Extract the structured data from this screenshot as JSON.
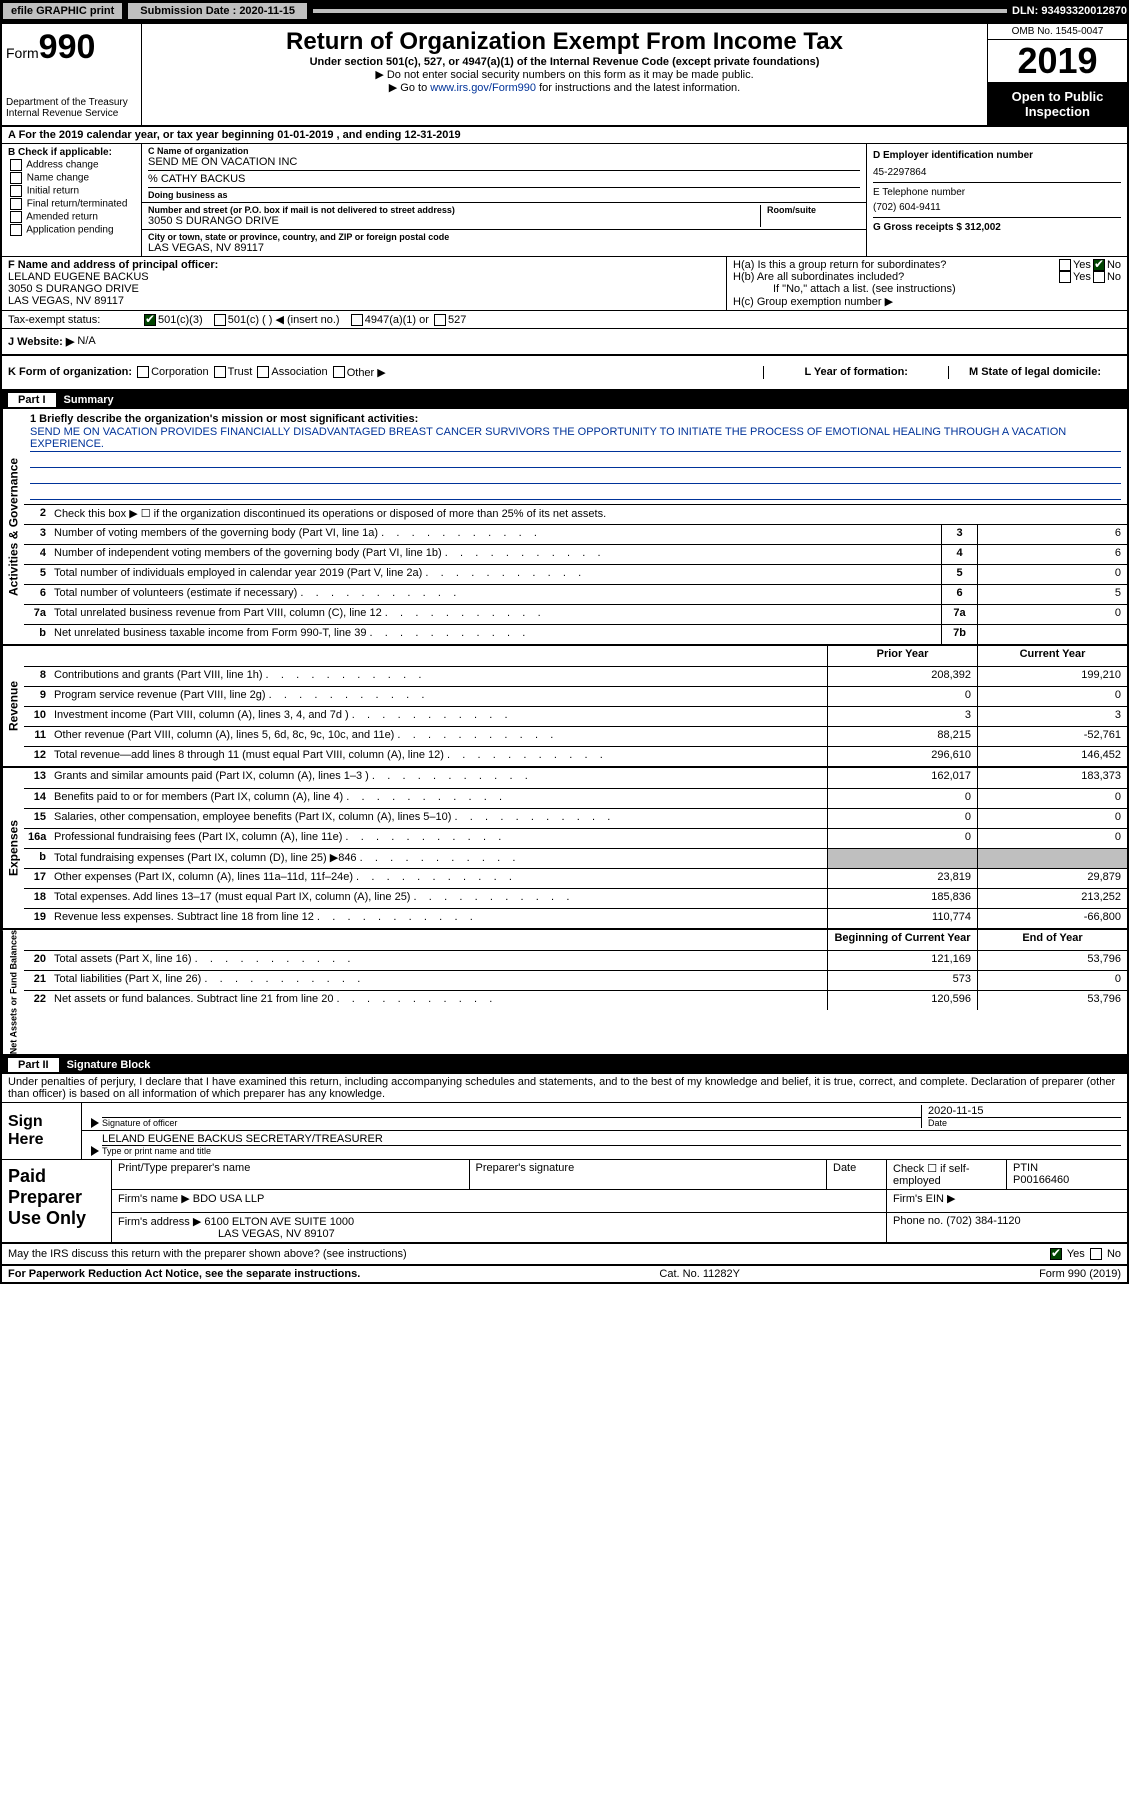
{
  "topbar": {
    "efile": "efile GRAPHIC print",
    "submission_label": "Submission Date : 2020-11-15",
    "dln": "DLN: 93493320012870"
  },
  "header": {
    "form_word": "Form",
    "form_num": "990",
    "dept": "Department of the Treasury",
    "irs": "Internal Revenue Service",
    "title": "Return of Organization Exempt From Income Tax",
    "sub": "Under section 501(c), 527, or 4947(a)(1) of the Internal Revenue Code (except private foundations)",
    "note1": "▶ Do not enter social security numbers on this form as it may be made public.",
    "note2_a": "▶ Go to ",
    "note2_link": "www.irs.gov/Form990",
    "note2_b": " for instructions and the latest information.",
    "omb": "OMB No. 1545-0047",
    "year": "2019",
    "open": "Open to Public Inspection"
  },
  "secA": "A For the 2019 calendar year, or tax year beginning 01-01-2019     , and ending 12-31-2019",
  "colB": {
    "label": "B Check if applicable:",
    "items": [
      "Address change",
      "Name change",
      "Initial return",
      "Final return/terminated",
      "Amended return",
      "Application pending"
    ]
  },
  "colC": {
    "name_label": "C Name of organization",
    "name": "SEND ME ON VACATION INC",
    "care": "% CATHY BACKUS",
    "dba_label": "Doing business as",
    "addr_label": "Number and street (or P.O. box if mail is not delivered to street address)",
    "room_label": "Room/suite",
    "addr": "3050 S DURANGO DRIVE",
    "city_label": "City or town, state or province, country, and ZIP or foreign postal code",
    "city": "LAS VEGAS, NV  89117"
  },
  "colD": {
    "ein_label": "D Employer identification number",
    "ein": "45-2297864",
    "phone_label": "E Telephone number",
    "phone": "(702) 604-9411",
    "gross_label": "G Gross receipts $ 312,002"
  },
  "rowF": {
    "label": "F  Name and address of principal officer:",
    "name": "LELAND EUGENE BACKUS",
    "addr": "3050 S DURANGO DRIVE",
    "city": "LAS VEGAS, NV  89117"
  },
  "rowH": {
    "ha": "H(a)  Is this a group return for subordinates?",
    "hb": "H(b)  Are all subordinates included?",
    "hb_note": "If \"No,\" attach a list. (see instructions)",
    "hc": "H(c)  Group exemption number ▶",
    "yes": "Yes",
    "no": "No"
  },
  "tax": {
    "label": "Tax-exempt status:",
    "a": "501(c)(3)",
    "b": "501(c) (   ) ◀ (insert no.)",
    "c": "4947(a)(1) or",
    "d": "527"
  },
  "rowJ": {
    "label": "J   Website: ▶",
    "val": "N/A"
  },
  "rowK": {
    "k": "K Form of organization:",
    "opts": [
      "Corporation",
      "Trust",
      "Association",
      "Other ▶"
    ],
    "l": "L Year of formation:",
    "m": "M State of legal domicile:"
  },
  "part1": {
    "num": "Part I",
    "title": "Summary"
  },
  "mission": {
    "label": "1  Briefly describe the organization's mission or most significant activities:",
    "text": "SEND ME ON VACATION PROVIDES FINANCIALLY DISADVANTAGED BREAST CANCER SURVIVORS THE OPPORTUNITY TO INITIATE THE PROCESS OF EMOTIONAL HEALING THROUGH A VACATION EXPERIENCE."
  },
  "act": {
    "l2": "Check this box ▶ ☐  if the organization discontinued its operations or disposed of more than 25% of its net assets.",
    "rows": [
      {
        "n": "3",
        "t": "Number of voting members of the governing body (Part VI, line 1a)",
        "box": "3",
        "v": "6"
      },
      {
        "n": "4",
        "t": "Number of independent voting members of the governing body (Part VI, line 1b)",
        "box": "4",
        "v": "6"
      },
      {
        "n": "5",
        "t": "Total number of individuals employed in calendar year 2019 (Part V, line 2a)",
        "box": "5",
        "v": "0"
      },
      {
        "n": "6",
        "t": "Total number of volunteers (estimate if necessary)",
        "box": "6",
        "v": "5"
      },
      {
        "n": "7a",
        "t": "Total unrelated business revenue from Part VIII, column (C), line 12",
        "box": "7a",
        "v": "0"
      },
      {
        "n": "b",
        "t": "Net unrelated business taxable income from Form 990-T, line 39",
        "box": "7b",
        "v": ""
      }
    ]
  },
  "cols": {
    "prior": "Prior Year",
    "current": "Current Year",
    "boy": "Beginning of Current Year",
    "eoy": "End of Year"
  },
  "rev": [
    {
      "n": "8",
      "t": "Contributions and grants (Part VIII, line 1h)",
      "p": "208,392",
      "c": "199,210"
    },
    {
      "n": "9",
      "t": "Program service revenue (Part VIII, line 2g)",
      "p": "0",
      "c": "0"
    },
    {
      "n": "10",
      "t": "Investment income (Part VIII, column (A), lines 3, 4, and 7d )",
      "p": "3",
      "c": "3"
    },
    {
      "n": "11",
      "t": "Other revenue (Part VIII, column (A), lines 5, 6d, 8c, 9c, 10c, and 11e)",
      "p": "88,215",
      "c": "-52,761"
    },
    {
      "n": "12",
      "t": "Total revenue—add lines 8 through 11 (must equal Part VIII, column (A), line 12)",
      "p": "296,610",
      "c": "146,452"
    }
  ],
  "exp": [
    {
      "n": "13",
      "t": "Grants and similar amounts paid (Part IX, column (A), lines 1–3 )",
      "p": "162,017",
      "c": "183,373"
    },
    {
      "n": "14",
      "t": "Benefits paid to or for members (Part IX, column (A), line 4)",
      "p": "0",
      "c": "0"
    },
    {
      "n": "15",
      "t": "Salaries, other compensation, employee benefits (Part IX, column (A), lines 5–10)",
      "p": "0",
      "c": "0"
    },
    {
      "n": "16a",
      "t": "Professional fundraising fees (Part IX, column (A), line 11e)",
      "p": "0",
      "c": "0"
    },
    {
      "n": "b",
      "t": "Total fundraising expenses (Part IX, column (D), line 25) ▶846",
      "p": "",
      "c": "",
      "shade": true
    },
    {
      "n": "17",
      "t": "Other expenses (Part IX, column (A), lines 11a–11d, 11f–24e)",
      "p": "23,819",
      "c": "29,879"
    },
    {
      "n": "18",
      "t": "Total expenses. Add lines 13–17 (must equal Part IX, column (A), line 25)",
      "p": "185,836",
      "c": "213,252"
    },
    {
      "n": "19",
      "t": "Revenue less expenses. Subtract line 18 from line 12",
      "p": "110,774",
      "c": "-66,800"
    }
  ],
  "net": [
    {
      "n": "20",
      "t": "Total assets (Part X, line 16)",
      "p": "121,169",
      "c": "53,796"
    },
    {
      "n": "21",
      "t": "Total liabilities (Part X, line 26)",
      "p": "573",
      "c": "0"
    },
    {
      "n": "22",
      "t": "Net assets or fund balances. Subtract line 21 from line 20",
      "p": "120,596",
      "c": "53,796"
    }
  ],
  "part2": {
    "num": "Part II",
    "title": "Signature Block"
  },
  "penalty": "Under penalties of perjury, I declare that I have examined this return, including accompanying schedules and statements, and to the best of my knowledge and belief, it is true, correct, and complete. Declaration of preparer (other than officer) is based on all information of which preparer has any knowledge.",
  "sign": {
    "here": "Sign Here",
    "sig_label": "Signature of officer",
    "date": "2020-11-15",
    "date_label": "Date",
    "name": "LELAND EUGENE BACKUS  SECRETARY/TREASURER",
    "name_label": "Type or print name and title"
  },
  "paid": {
    "label": "Paid Preparer Use Only",
    "h1": "Print/Type preparer's name",
    "h2": "Preparer's signature",
    "h3": "Date",
    "h4a": "Check ☐ if self-employed",
    "h4b": "PTIN",
    "ptin": "P00166460",
    "firm_label": "Firm's name    ▶",
    "firm": "BDO USA LLP",
    "ein_label": "Firm's EIN ▶",
    "addr_label": "Firm's address ▶",
    "addr1": "6100 ELTON AVE SUITE 1000",
    "addr2": "LAS VEGAS, NV  89107",
    "phone_label": "Phone no. (702) 384-1120"
  },
  "discuss": "May the IRS discuss this return with the preparer shown above? (see instructions)",
  "footer": {
    "left": "For Paperwork Reduction Act Notice, see the separate instructions.",
    "mid": "Cat. No. 11282Y",
    "right": "Form 990 (2019)"
  },
  "sides": {
    "act": "Activities & Governance",
    "rev": "Revenue",
    "exp": "Expenses",
    "net": "Net Assets or Fund Balances"
  }
}
